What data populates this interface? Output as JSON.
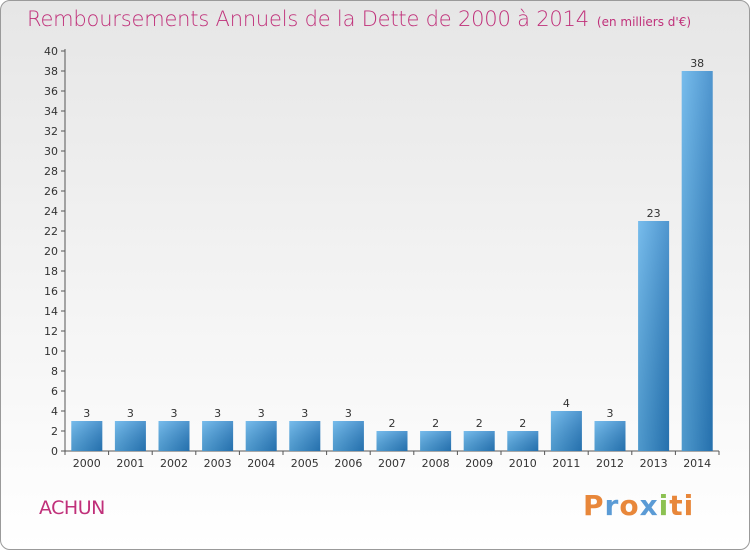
{
  "header": {
    "title": "Remboursements Annuels de la Dette de 2000 à 2014",
    "unit": "(en milliers d'€)"
  },
  "footer": {
    "commune": "ACHUN",
    "logo": "Proxiti",
    "logo_colors": [
      "#e8873a",
      "#5b9bd5",
      "#e8873a",
      "#5b9bd5",
      "#8cc152",
      "#e8873a",
      "#e8873a"
    ]
  },
  "chart_data": {
    "type": "bar",
    "title": "Remboursements Annuels de la Dette de 2000 à 2014",
    "categories": [
      "2000",
      "2001",
      "2002",
      "2003",
      "2004",
      "2005",
      "2006",
      "2007",
      "2008",
      "2009",
      "2010",
      "2011",
      "2012",
      "2013",
      "2014"
    ],
    "values": [
      3,
      3,
      3,
      3,
      3,
      3,
      3,
      2,
      2,
      2,
      2,
      4,
      3,
      23,
      38
    ],
    "ylim": [
      0,
      40
    ],
    "ytick_step": 2,
    "grid": false,
    "bar_color": "#3d8fd4",
    "axis_color": "#555555"
  }
}
